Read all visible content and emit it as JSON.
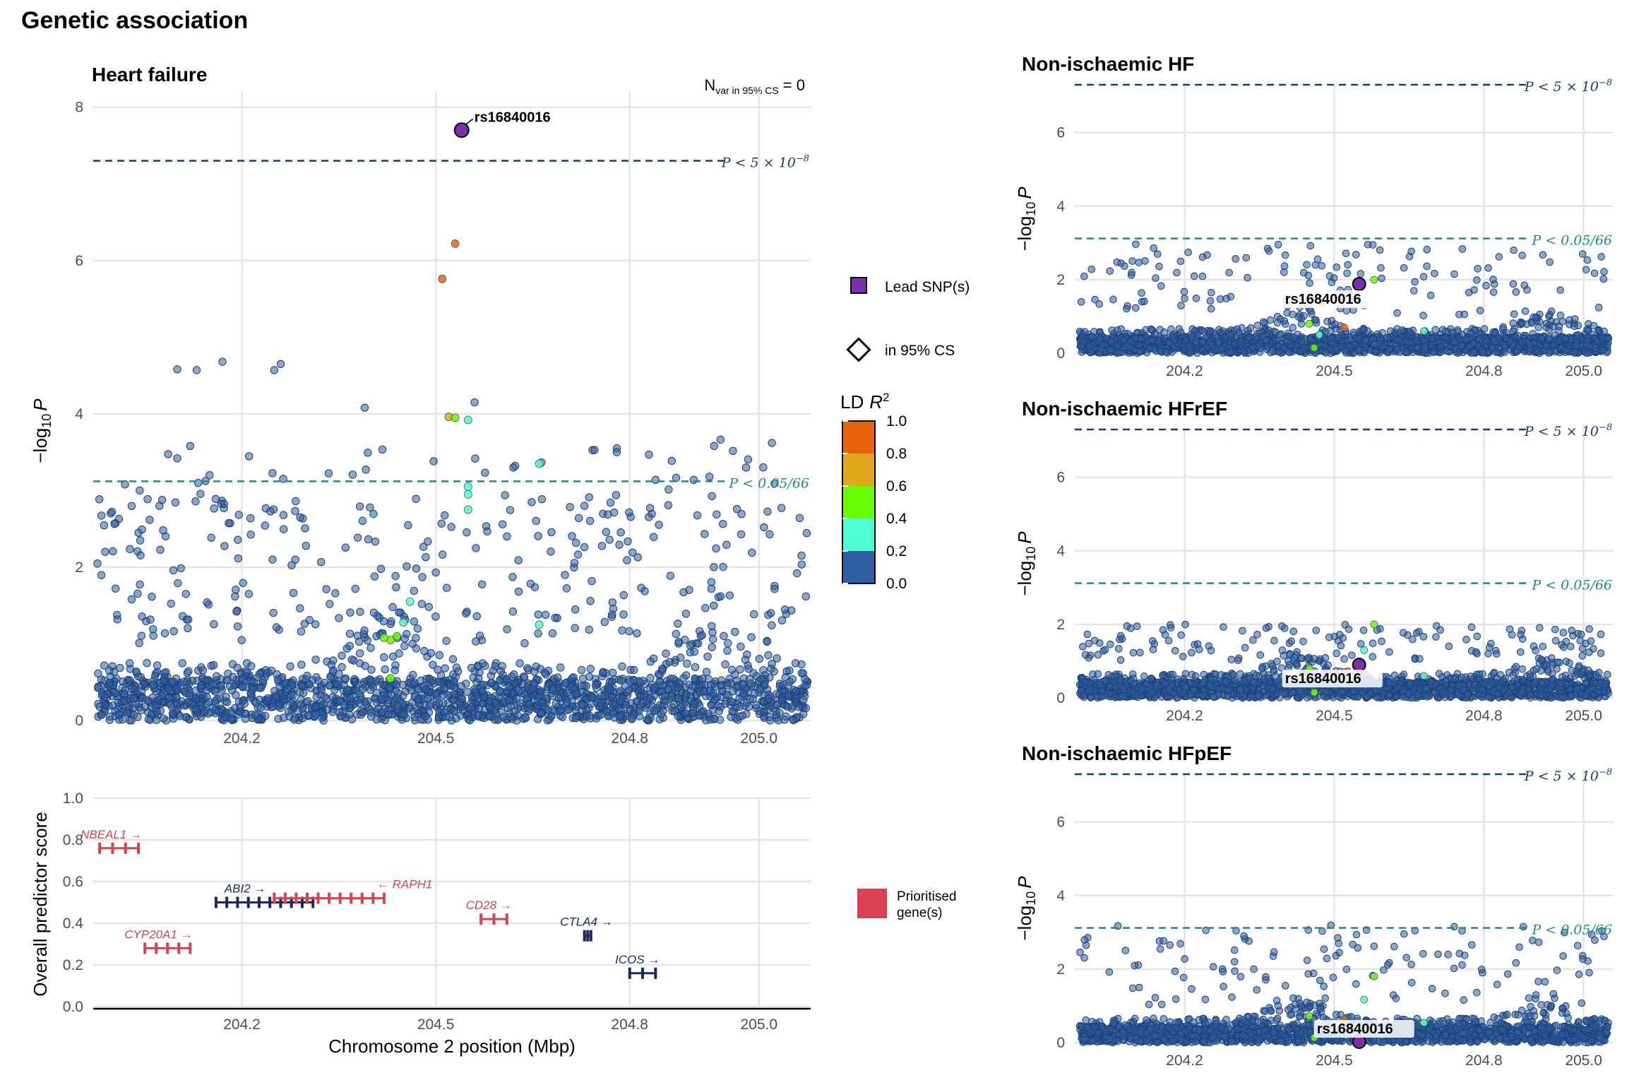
{
  "title": "Genetic association",
  "colors": {
    "blue": "#2E5FA3",
    "lead": "#7B2FA8",
    "ld_0.8_1.0": "#E8640C",
    "ld_0.6_0.8": "#E0A81E",
    "ld_0.4_0.6": "#66FF00",
    "ld_0.2_0.4": "#4DFFD2",
    "ld_0.0_0.2": "#2E5FA3",
    "genome_wide_line": "#1F3A6B",
    "bonferroni_line": "#1E8B8B",
    "prioritised_gene": "#D9414E",
    "other_gene": "#1B2A5E"
  },
  "legend": {
    "lead_label": "Lead SNP(s)",
    "cs_label": "in 95% CS",
    "ld_title": "LD",
    "ld_title_var": "R",
    "ld_title_sup": "2",
    "ld_ticks": [
      "1.0",
      "0.8",
      "0.6",
      "0.4",
      "0.2",
      "0.0"
    ],
    "gene_label_line1": "Prioritised",
    "gene_label_line2": "gene(s)"
  },
  "main_panel": {
    "title": "Heart failure",
    "nvar_label": "N",
    "nvar_sub": "var in 95% CS",
    "nvar_value": " = 0",
    "ylabel_prefix": "−log",
    "ylabel_sub": "10",
    "ylabel_var": "P",
    "lead_snp": "rs16840016",
    "gw_label": "P < 5 × 10",
    "gw_exp": "−8",
    "bonf_label": "P < 0.05/66"
  },
  "side_panels": [
    {
      "title": "Non-ischaemic HF",
      "lead_snp": "rs16840016"
    },
    {
      "title": "Non-ischaemic HFrEF",
      "lead_snp": "rs16840016"
    },
    {
      "title": "Non-ischaemic HFpEF",
      "lead_snp": "rs16840016"
    }
  ],
  "gene_panel": {
    "ylabel": "Overall predictor score",
    "xlabel": "Chromosome 2 position (Mbp)"
  },
  "chart_data": [
    {
      "type": "scatter",
      "title": "Heart failure",
      "xlabel": "",
      "ylabel": "−log10 P",
      "xlim": [
        203.97,
        205.08
      ],
      "ylim": [
        0,
        8.2
      ],
      "xticks": [
        204.2,
        204.5,
        204.8,
        205.0
      ],
      "yticks": [
        0,
        2,
        4,
        6,
        8
      ],
      "thresholds": {
        "genome_wide": 7.3,
        "bonferroni": 3.12
      },
      "lead": {
        "label": "rs16840016",
        "x": 204.54,
        "y": 7.7
      },
      "highlighted_points": [
        {
          "x": 204.53,
          "y": 6.22,
          "ld": "0.8-1.0"
        },
        {
          "x": 204.51,
          "y": 5.76,
          "ld": "0.8-1.0"
        },
        {
          "x": 204.52,
          "y": 3.96,
          "ld": "0.6-0.8"
        },
        {
          "x": 204.53,
          "y": 3.95,
          "ld": "0.4-0.6"
        },
        {
          "x": 204.55,
          "y": 3.92,
          "ld": "0.2-0.4"
        },
        {
          "x": 204.66,
          "y": 3.35,
          "ld": "0.2-0.4"
        },
        {
          "x": 204.55,
          "y": 3.05,
          "ld": "0.2-0.4"
        },
        {
          "x": 204.55,
          "y": 2.95,
          "ld": "0.2-0.4"
        },
        {
          "x": 204.55,
          "y": 2.75,
          "ld": "0.2-0.4"
        },
        {
          "x": 204.46,
          "y": 1.55,
          "ld": "0.2-0.4"
        },
        {
          "x": 204.45,
          "y": 1.28,
          "ld": "0.2-0.4"
        },
        {
          "x": 204.44,
          "y": 1.1,
          "ld": "0.4-0.6"
        },
        {
          "x": 204.43,
          "y": 1.05,
          "ld": "0.4-0.6"
        },
        {
          "x": 204.42,
          "y": 1.08,
          "ld": "0.4-0.6"
        },
        {
          "x": 204.43,
          "y": 0.55,
          "ld": "0.4-0.6"
        },
        {
          "x": 204.66,
          "y": 1.25,
          "ld": "0.2-0.4"
        }
      ],
      "background_points": {
        "ld": "0.0-0.2",
        "description_count": "many (approx. 2000)",
        "y_range": [
          0,
          4.6
        ]
      }
    },
    {
      "type": "scatter",
      "title": "Non-ischaemic HF",
      "xlim": [
        203.98,
        205.06
      ],
      "ylim": [
        0,
        7.3
      ],
      "xticks": [
        204.2,
        204.5,
        204.8,
        205.0
      ],
      "yticks": [
        0,
        2,
        4,
        6
      ],
      "thresholds": {
        "genome_wide": 7.3,
        "bonferroni": 3.12
      },
      "lead": {
        "label": "rs16840016",
        "x": 204.55,
        "y": 1.88
      }
    },
    {
      "type": "scatter",
      "title": "Non-ischaemic HFrEF",
      "xlim": [
        203.98,
        205.06
      ],
      "ylim": [
        0,
        7.3
      ],
      "xticks": [
        204.2,
        204.5,
        204.8,
        205.0
      ],
      "yticks": [
        0,
        2,
        4,
        6
      ],
      "thresholds": {
        "genome_wide": 7.3,
        "bonferroni": 3.12
      },
      "lead": {
        "label": "rs16840016",
        "x": 204.55,
        "y": 0.9
      }
    },
    {
      "type": "scatter",
      "title": "Non-ischaemic HFpEF",
      "xlim": [
        203.98,
        205.06
      ],
      "ylim": [
        0,
        7.3
      ],
      "xticks": [
        204.2,
        204.5,
        204.8,
        205.0
      ],
      "yticks": [
        0,
        2,
        4,
        6
      ],
      "thresholds": {
        "genome_wide": 7.3,
        "bonferroni": 3.12
      },
      "lead": {
        "label": "rs16840016",
        "x": 204.55,
        "y": 0.02
      }
    },
    {
      "type": "bar",
      "title": "",
      "xlabel": "Chromosome 2 position (Mbp)",
      "ylabel": "Overall predictor score",
      "xlim": [
        203.97,
        205.08
      ],
      "ylim": [
        0,
        1.0
      ],
      "xticks": [
        204.2,
        204.5,
        204.8,
        205.0
      ],
      "yticks": [
        0.0,
        0.2,
        0.4,
        0.6,
        0.8,
        1.0
      ],
      "genes": [
        {
          "name": "NBEAL1",
          "start": 203.98,
          "end": 204.04,
          "score": 0.76,
          "prioritised": true,
          "arrow": "→",
          "label_side": "after"
        },
        {
          "name": "ABI2",
          "start": 204.16,
          "end": 204.31,
          "score": 0.5,
          "prioritised": false,
          "arrow": "→",
          "label_side": "after"
        },
        {
          "name": "RAPH1",
          "start": 204.25,
          "end": 204.42,
          "score": 0.52,
          "prioritised": true,
          "arrow": "←",
          "label_side": "before"
        },
        {
          "name": "CYP20A1",
          "start": 204.05,
          "end": 204.12,
          "score": 0.28,
          "prioritised": true,
          "arrow": "→",
          "label_side": "after"
        },
        {
          "name": "CD28",
          "start": 204.57,
          "end": 204.61,
          "score": 0.42,
          "prioritised": true,
          "arrow": "→",
          "label_side": "after"
        },
        {
          "name": "CTLA4",
          "start": 204.73,
          "end": 204.74,
          "score": 0.34,
          "prioritised": false,
          "arrow": "→",
          "label_side": "after"
        },
        {
          "name": "ICOS",
          "start": 204.8,
          "end": 204.84,
          "score": 0.16,
          "prioritised": false,
          "arrow": "→",
          "label_side": "after"
        }
      ]
    }
  ]
}
